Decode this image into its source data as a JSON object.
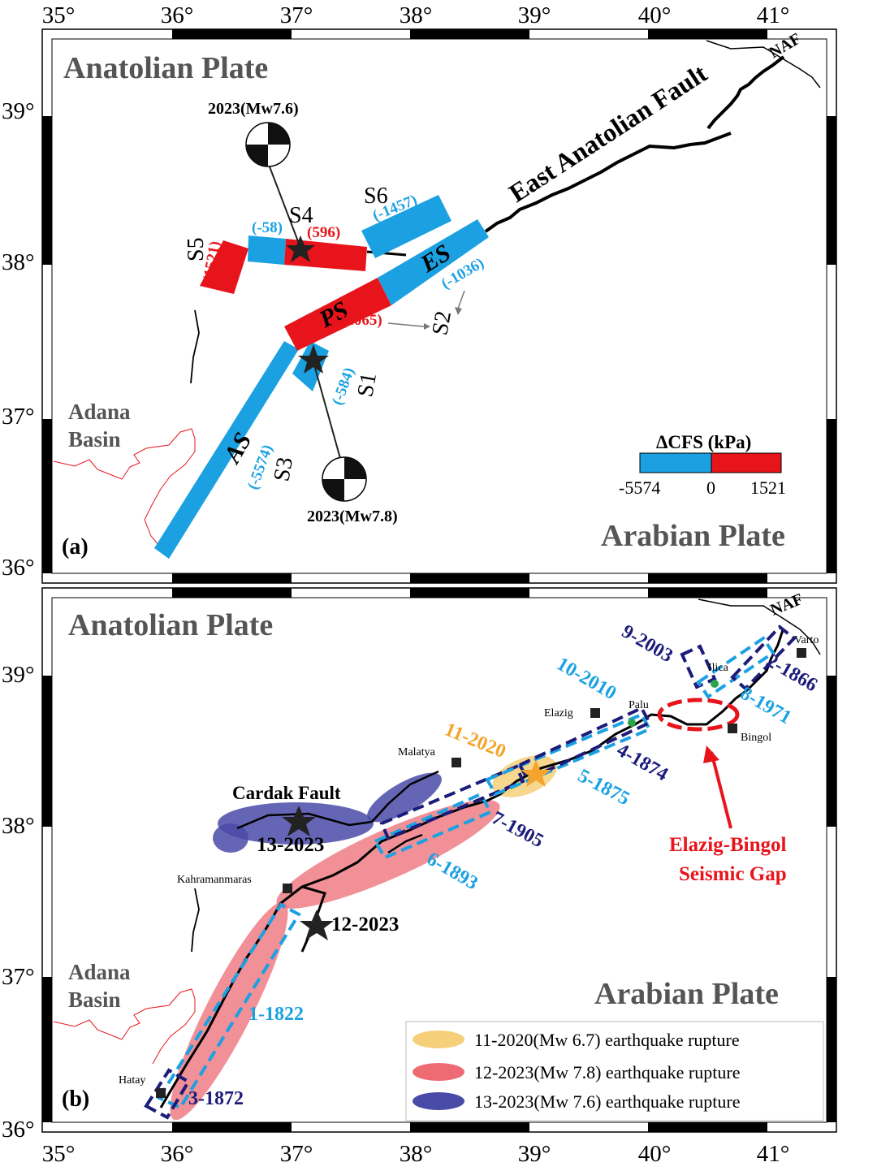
{
  "axes": {
    "lon_ticks": [
      "35°",
      "36°",
      "37°",
      "38°",
      "39°",
      "40°",
      "41°"
    ],
    "lat_ticks": [
      "39°",
      "38°",
      "37°",
      "36°"
    ]
  },
  "panel_a": {
    "tag": "(a)",
    "anatolian_plate": "Anatolian Plate",
    "arabian_plate": "Arabian Plate",
    "naf": "NAF",
    "east_anatolian_fault": "East Anatolian Fault",
    "adana_basin_1": "Adana",
    "adana_basin_2": "Basin",
    "mech_top_label": "2023(Mw7.6)",
    "mech_bottom_label": "2023(Mw7.8)",
    "segments": {
      "S1": {
        "name": "S1",
        "value": "(-584)"
      },
      "S2": {
        "name": "S2",
        "value": "(-1036)"
      },
      "S3": {
        "name": "S3",
        "value": "(-5574)"
      },
      "S4": {
        "name": "S4",
        "value": "(596)"
      },
      "S4b": {
        "value": "(-58)"
      },
      "S5": {
        "name": "S5",
        "value": "(1521)"
      },
      "S6": {
        "name": "S6",
        "value": "(-1457)"
      },
      "PS": {
        "name": "PS",
        "value": "(1065)"
      },
      "ES": {
        "name": "ES"
      },
      "AS": {
        "name": "AS"
      }
    },
    "colorbar": {
      "title": "ΔCFS (kPa)",
      "min": "-5574",
      "mid": "0",
      "max": "1521",
      "negative_color": "#1ba1e2",
      "positive_color": "#e8141c"
    }
  },
  "panel_b": {
    "tag": "(b)",
    "anatolian_plate": "Anatolian Plate",
    "arabian_plate": "Arabian Plate",
    "naf": "NAF",
    "adana_basin_1": "Adana",
    "adana_basin_2": "Basin",
    "cardak_fault": "Cardak Fault",
    "eq_13": "13-2023",
    "eq_12": "12-2023",
    "gap_1": "Elazig-Bingol",
    "gap_2": "Seismic Gap",
    "cities": [
      "Varto",
      "Ilica",
      "Palu",
      "Elazig",
      "Bingol",
      "Malatya",
      "Kahramanmaras",
      "Hatay"
    ],
    "ruptures": [
      "1-1822",
      "2-1866",
      "3-1872",
      "4-1874",
      "5-1875",
      "6-1893",
      "7-1905",
      "8-1971",
      "9-2003",
      "10-2010",
      "11-2020"
    ],
    "legend": [
      {
        "label": "11-2020(Mw 6.7) earthquake rupture",
        "color": "#f6cf7a"
      },
      {
        "label": "12-2023(Mw 7.8) earthquake rupture",
        "color": "#ee6b74"
      },
      {
        "label": "13-2023(Mw 7.6) earthquake rupture",
        "color": "#4a4aa8"
      }
    ]
  }
}
